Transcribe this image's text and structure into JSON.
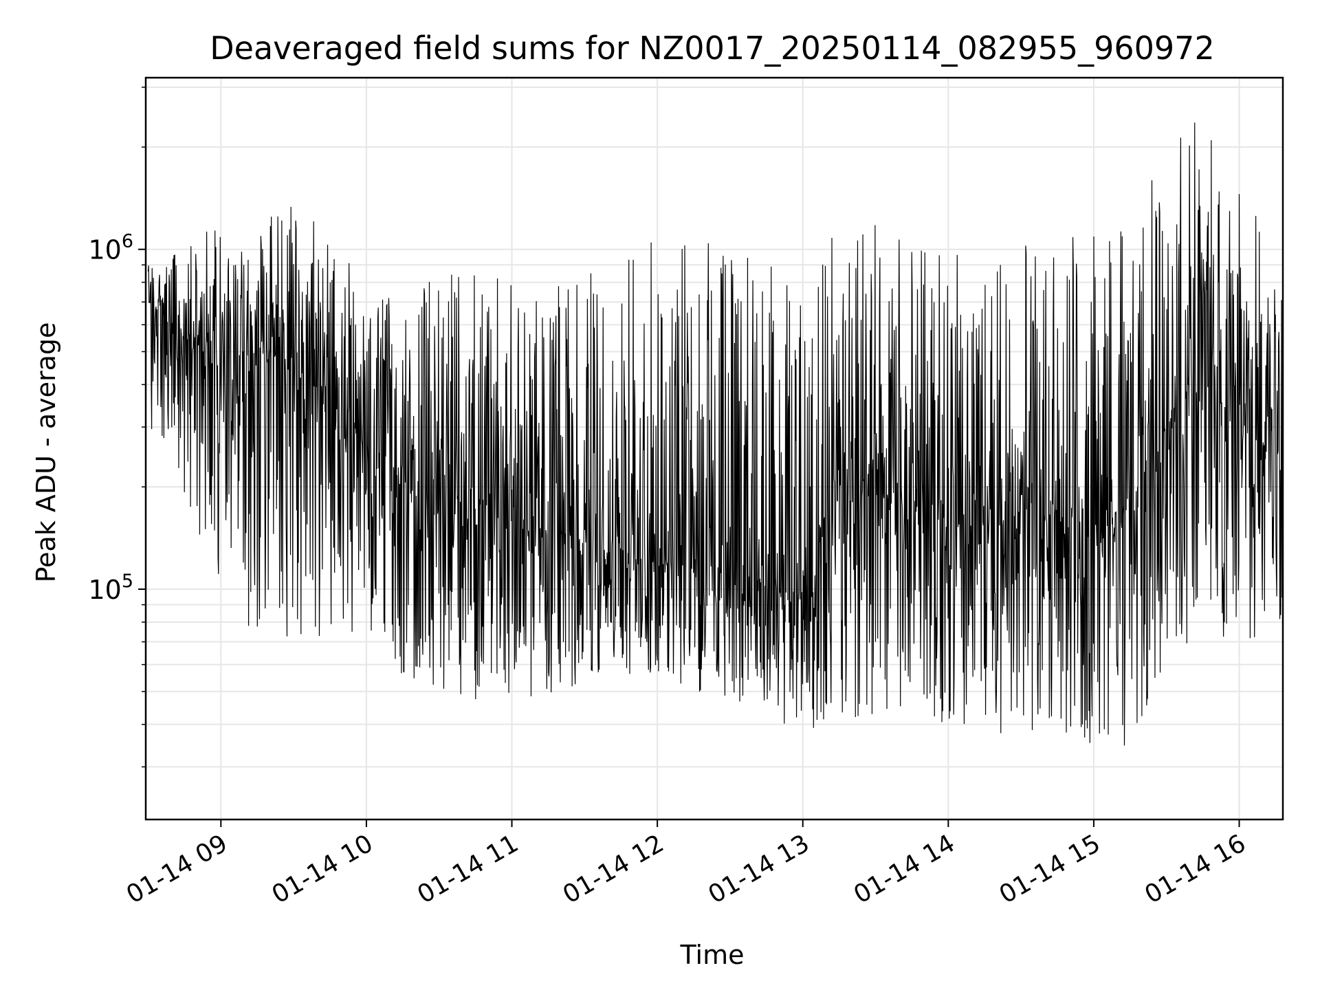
{
  "chart_data": {
    "type": "line",
    "title": "Deaveraged field sums for NZ0017_20250114_082955_960972",
    "xlabel": "Time",
    "ylabel": "Peak ADU - average",
    "yscale": "log",
    "ylim": [
      21000,
      3200000
    ],
    "xlim": [
      "2025-01-14 08:29",
      "2025-01-14 16:18"
    ],
    "grid": true,
    "line_color": "#000000",
    "grid_color": "#e6e6e6",
    "x_tick_labels": [
      "01-14 09",
      "01-14 10",
      "01-14 11",
      "01-14 12",
      "01-14 13",
      "01-14 14",
      "01-14 15",
      "01-14 16"
    ],
    "x_ticks": [
      "2025-01-14 09:00",
      "2025-01-14 10:00",
      "2025-01-14 11:00",
      "2025-01-14 12:00",
      "2025-01-14 13:00",
      "2025-01-14 14:00",
      "2025-01-14 15:00",
      "2025-01-14 16:00"
    ],
    "y_ticks": [
      {
        "value": 100000,
        "base": "10",
        "exp": "5"
      },
      {
        "value": 1000000,
        "base": "10",
        "exp": "6"
      }
    ],
    "series": [
      {
        "x": [
          "2025-01-14 08:30",
          "2025-01-14 08:45",
          "2025-01-14 09:00",
          "2025-01-14 09:15",
          "2025-01-14 09:30",
          "2025-01-14 09:45",
          "2025-01-14 10:00",
          "2025-01-14 10:15",
          "2025-01-14 10:30",
          "2025-01-14 10:45",
          "2025-01-14 11:00",
          "2025-01-14 11:15",
          "2025-01-14 11:30",
          "2025-01-14 11:45",
          "2025-01-14 12:00",
          "2025-01-14 12:15",
          "2025-01-14 12:30",
          "2025-01-14 12:45",
          "2025-01-14 13:00",
          "2025-01-14 13:15",
          "2025-01-14 13:30",
          "2025-01-14 13:45",
          "2025-01-14 14:00",
          "2025-01-14 14:15",
          "2025-01-14 14:30",
          "2025-01-14 14:45",
          "2025-01-14 15:00",
          "2025-01-14 15:15",
          "2025-01-14 15:30",
          "2025-01-14 15:45",
          "2025-01-14 16:00",
          "2025-01-14 16:15"
        ],
        "y_mid": [
          700000,
          550000,
          450000,
          500000,
          450000,
          350000,
          250000,
          200000,
          180000,
          160000,
          170000,
          150000,
          140000,
          130000,
          120000,
          115000,
          110000,
          105000,
          95000,
          180000,
          190000,
          170000,
          160000,
          150000,
          170000,
          160000,
          140000,
          180000,
          300000,
          400000,
          300000,
          250000
        ],
        "y_high": [
          950000,
          1000000,
          1300000,
          1350000,
          1350000,
          1250000,
          700000,
          800000,
          900000,
          850000,
          900000,
          800000,
          1000000,
          1000000,
          1200000,
          1100000,
          1000000,
          1000000,
          700000,
          1300000,
          1300000,
          1100000,
          1000000,
          1000000,
          1100000,
          1100000,
          1100000,
          1500000,
          2000000,
          2500000,
          1800000,
          900000
        ],
        "y_low": [
          300000,
          150000,
          100000,
          70000,
          70000,
          70000,
          70000,
          55000,
          50000,
          45000,
          48000,
          45000,
          50000,
          55000,
          55000,
          50000,
          48000,
          40000,
          38000,
          40000,
          40000,
          40000,
          40000,
          38000,
          36000,
          38000,
          32000,
          35000,
          55000,
          70000,
          70000,
          70000
        ]
      }
    ]
  }
}
